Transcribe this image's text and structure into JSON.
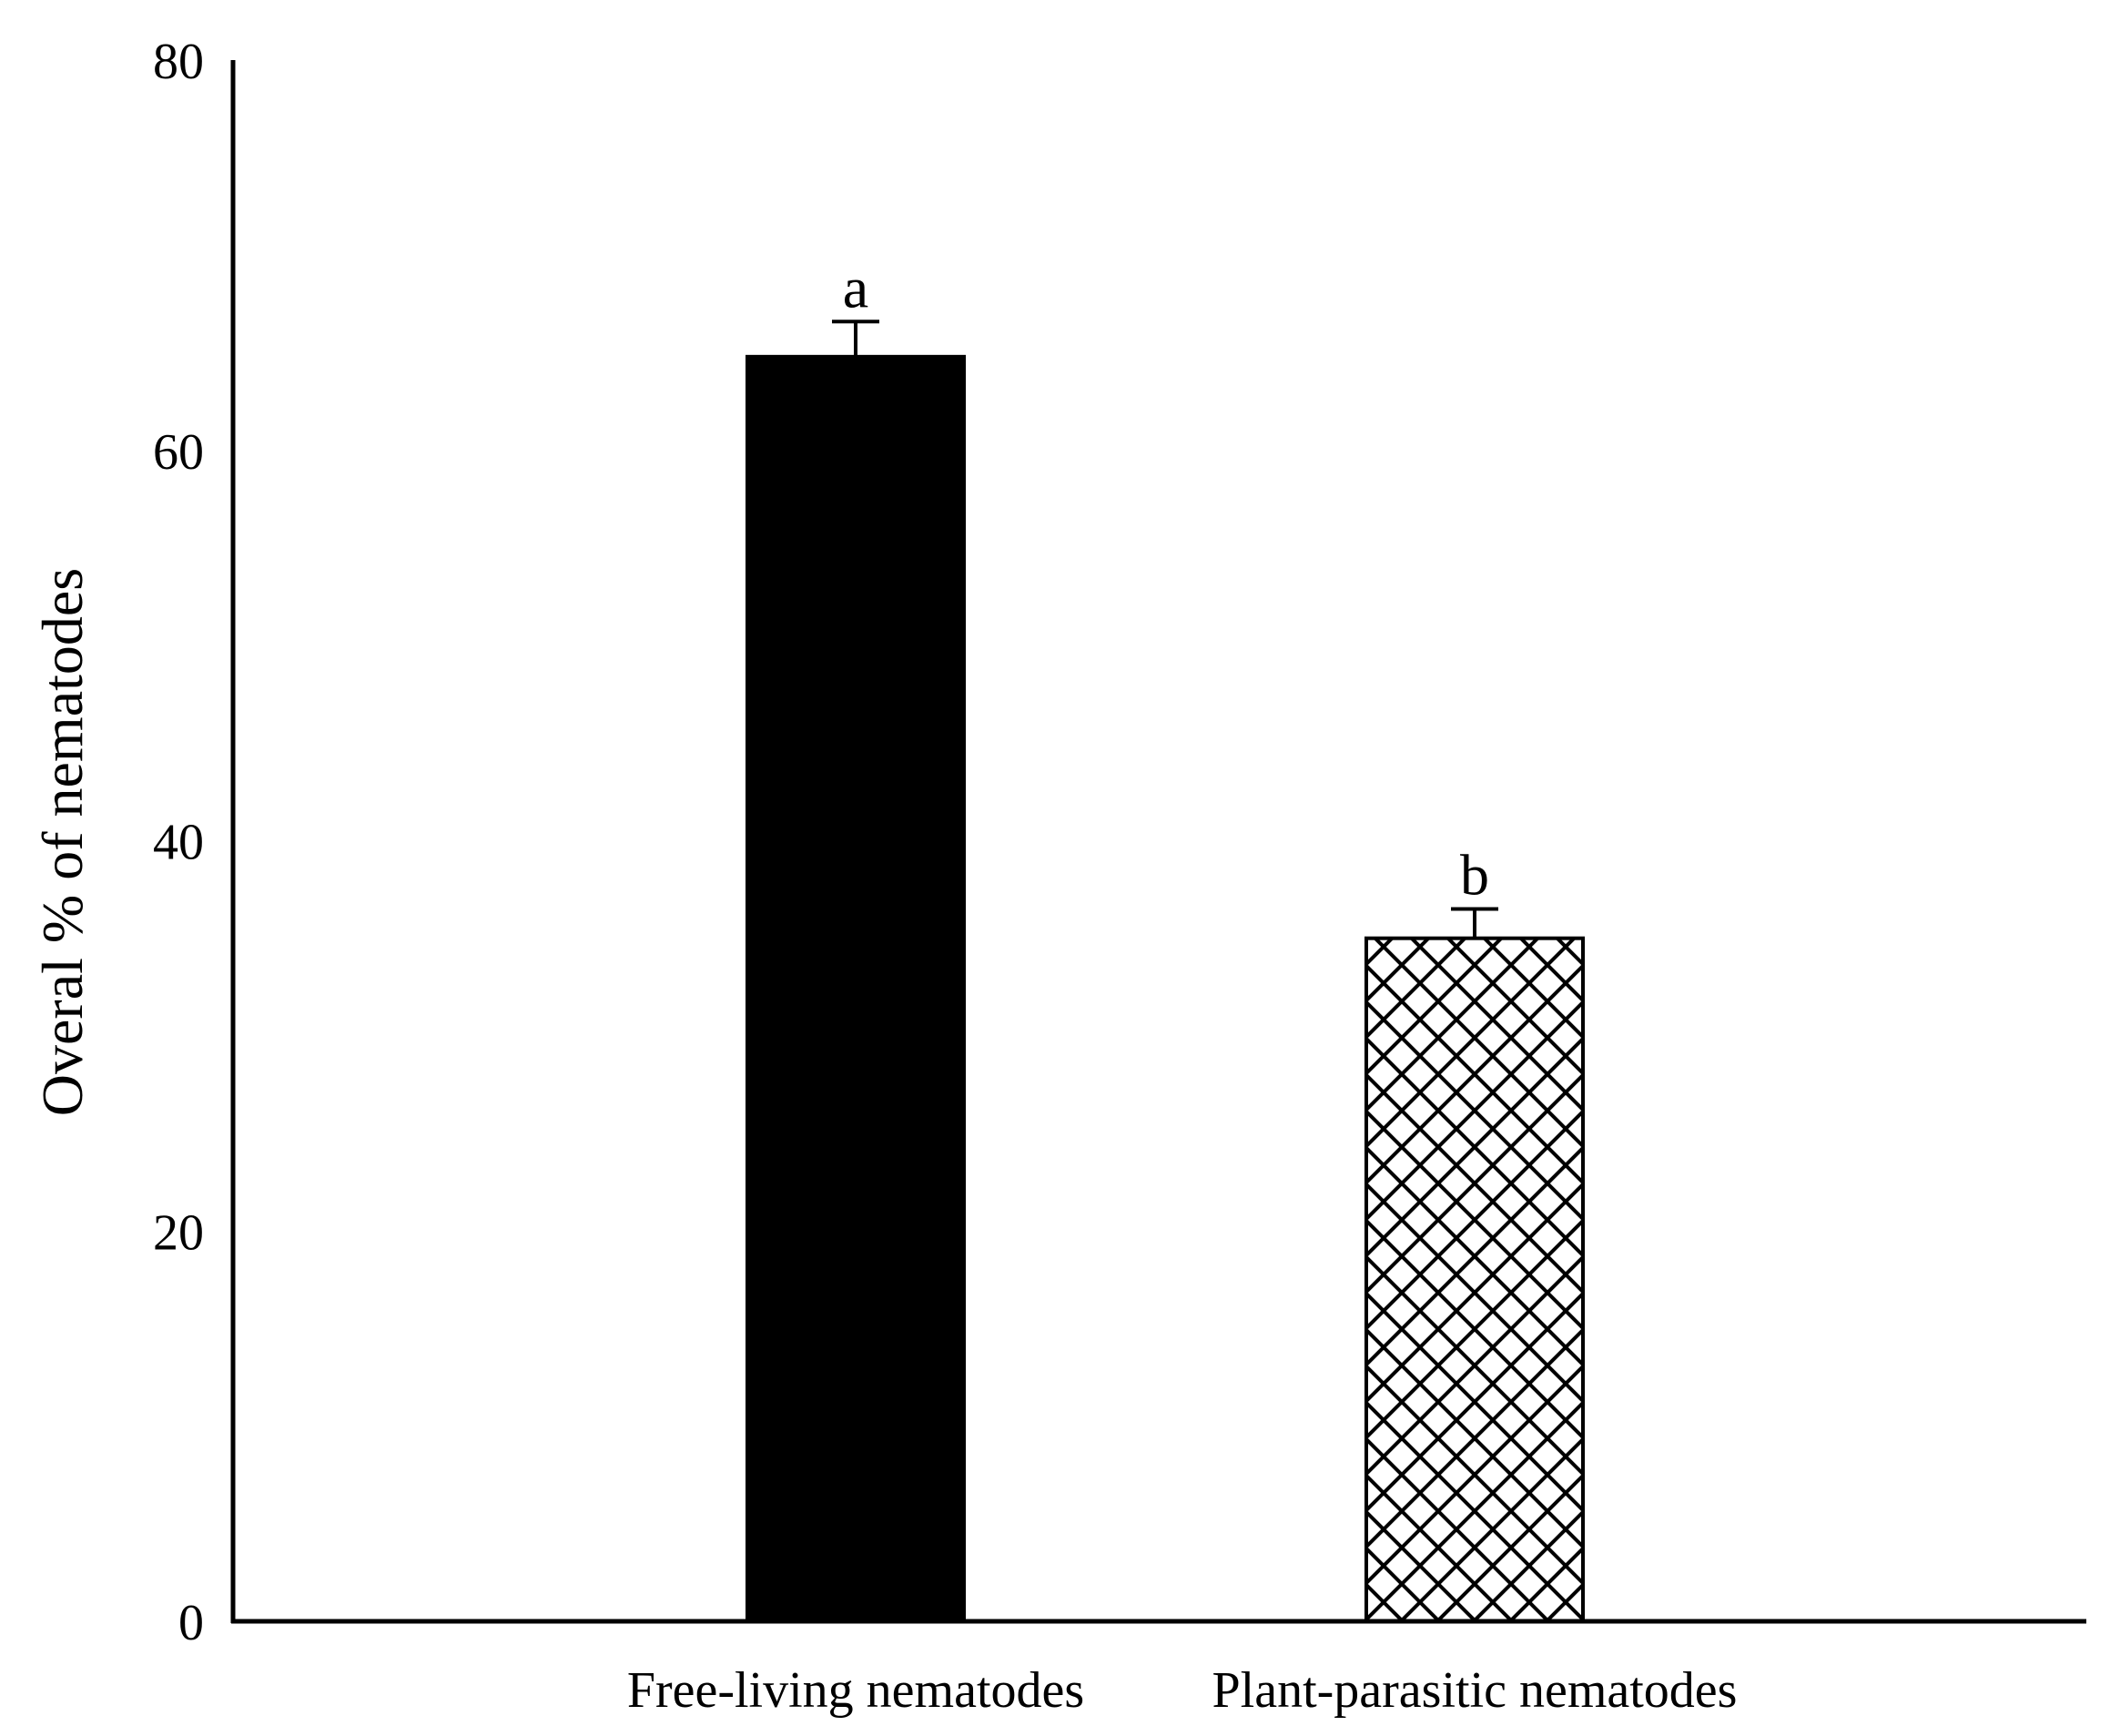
{
  "chart_data": {
    "type": "bar",
    "title": "",
    "xlabel": "",
    "ylabel": "Overal % of nematodes",
    "categories": [
      "Free-living nematodes",
      "Plant-parasitic nematodes"
    ],
    "values": [
      64.8,
      35.0
    ],
    "error_plus": [
      1.8,
      1.5
    ],
    "significance_letters": [
      "a",
      "b"
    ],
    "ylim": [
      0,
      80
    ],
    "yticks": [
      0,
      20,
      40,
      60,
      80
    ],
    "ytick_labels": [
      "0",
      "20",
      "40",
      "60",
      "80"
    ],
    "grid": false,
    "legend": "none",
    "bar_styles": [
      {
        "fill": "#000000",
        "pattern": "solid"
      },
      {
        "fill": "#ffffff",
        "pattern": "crosshatch"
      }
    ]
  }
}
